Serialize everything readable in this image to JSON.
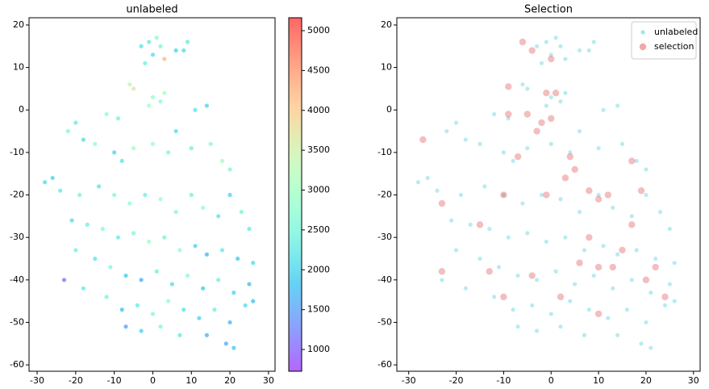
{
  "chart_data": [
    {
      "type": "scatter",
      "title": "unlabeled",
      "colormap": "rainbow",
      "x": [
        -3,
        -1,
        0,
        2,
        3,
        6,
        8,
        9,
        -2,
        1,
        0,
        2,
        -1,
        3,
        -6,
        -5,
        11,
        14,
        -12,
        -9,
        -20,
        -18,
        -22,
        -15,
        -10,
        -8,
        -5,
        0,
        4,
        6,
        10,
        15,
        18,
        20,
        -28,
        -26,
        -24,
        -19,
        -14,
        -10,
        -6,
        -2,
        2,
        6,
        10,
        13,
        17,
        20,
        23,
        25,
        -21,
        -17,
        -13,
        -9,
        -5,
        -1,
        3,
        7,
        11,
        14,
        18,
        22,
        26,
        -20,
        -15,
        -11,
        -7,
        -3,
        1,
        5,
        9,
        13,
        17,
        21,
        25,
        -23,
        -18,
        -12,
        -8,
        -4,
        0,
        4,
        8,
        12,
        16,
        20,
        24,
        -7,
        -3,
        2,
        7,
        14,
        19,
        21,
        26
      ],
      "y": [
        15,
        16,
        13,
        15,
        12,
        14,
        14,
        16,
        11,
        17,
        3,
        2,
        1,
        4,
        6,
        5,
        0,
        1,
        -1,
        -2,
        -3,
        -7,
        -5,
        -8,
        -10,
        -12,
        -9,
        -8,
        -10,
        -5,
        -9,
        -8,
        -12,
        -14,
        -17,
        -16,
        -19,
        -20,
        -18,
        -20,
        -22,
        -20,
        -21,
        -24,
        -20,
        -23,
        -25,
        -20,
        -24,
        -28,
        -26,
        -27,
        -28,
        -30,
        -29,
        -31,
        -30,
        -33,
        -32,
        -34,
        -33,
        -35,
        -36,
        -33,
        -35,
        -37,
        -39,
        -40,
        -38,
        -41,
        -39,
        -42,
        -40,
        -43,
        -41,
        -40,
        -42,
        -44,
        -47,
        -46,
        -48,
        -45,
        -47,
        -49,
        -47,
        -50,
        -46,
        -51,
        -52,
        -51,
        -53,
        -53,
        -55,
        -56,
        -45
      ],
      "c": [
        2200,
        2300,
        2100,
        2600,
        4200,
        2000,
        2100,
        2300,
        2400,
        2700,
        2800,
        2700,
        3000,
        3100,
        3300,
        3600,
        2200,
        2000,
        2800,
        2500,
        2300,
        2100,
        2600,
        2800,
        2000,
        2200,
        3000,
        2900,
        2600,
        2100,
        2400,
        2700,
        3000,
        2600,
        2100,
        2000,
        2300,
        2500,
        2200,
        2600,
        2800,
        2400,
        2900,
        2600,
        2400,
        2800,
        2200,
        2000,
        2500,
        2300,
        2100,
        2400,
        2700,
        2300,
        2600,
        2900,
        2500,
        2800,
        2000,
        1700,
        2300,
        1900,
        2100,
        2400,
        2200,
        2600,
        1900,
        1600,
        2400,
        2100,
        2700,
        1900,
        2400,
        2000,
        1800,
        1200,
        2300,
        2500,
        1800,
        2300,
        2600,
        2800,
        2200,
        2000,
        2400,
        1700,
        2100,
        1500,
        2000,
        2600,
        2300,
        1700,
        1600,
        1900,
        1800
      ],
      "xlim": [
        -32.1,
        31.7
      ],
      "ylim": [
        -61.5,
        21.7
      ],
      "xticks": [
        -30,
        -20,
        -10,
        0,
        10,
        20,
        30
      ],
      "yticks": [
        -60,
        -50,
        -40,
        -30,
        -20,
        -10,
        0,
        10,
        20
      ],
      "clim": [
        727,
        5162
      ],
      "cticks": [
        1000,
        1500,
        2000,
        2500,
        3000,
        3500,
        4000,
        4500,
        5000
      ]
    },
    {
      "type": "scatter",
      "title": "Selection",
      "legend": "upper right",
      "series": [
        {
          "name": "unlabeled",
          "color": "#17becf",
          "x": [
            -3,
            -1,
            0,
            2,
            3,
            6,
            8,
            9,
            -2,
            1,
            0,
            2,
            -1,
            3,
            -6,
            -5,
            11,
            14,
            -12,
            -9,
            -20,
            -18,
            -22,
            -15,
            -10,
            -8,
            -5,
            0,
            4,
            6,
            10,
            15,
            18,
            20,
            -28,
            -26,
            -24,
            -19,
            -14,
            -10,
            -6,
            -2,
            2,
            6,
            10,
            13,
            17,
            20,
            23,
            25,
            -21,
            -17,
            -13,
            -9,
            -5,
            -1,
            3,
            7,
            11,
            14,
            18,
            22,
            26,
            -20,
            -15,
            -11,
            -7,
            -3,
            1,
            5,
            9,
            13,
            17,
            21,
            25,
            -23,
            -18,
            -12,
            -8,
            -4,
            0,
            4,
            8,
            12,
            16,
            20,
            24,
            -7,
            -3,
            2,
            7,
            14,
            19,
            21,
            26
          ],
          "y": [
            15,
            16,
            13,
            15,
            12,
            14,
            14,
            16,
            11,
            17,
            3,
            2,
            1,
            4,
            6,
            5,
            0,
            1,
            -1,
            -2,
            -3,
            -7,
            -5,
            -8,
            -10,
            -12,
            -9,
            -8,
            -10,
            -5,
            -9,
            -8,
            -12,
            -14,
            -17,
            -16,
            -19,
            -20,
            -18,
            -20,
            -22,
            -20,
            -21,
            -24,
            -20,
            -23,
            -25,
            -20,
            -24,
            -28,
            -26,
            -27,
            -28,
            -30,
            -29,
            -31,
            -30,
            -33,
            -32,
            -34,
            -33,
            -35,
            -36,
            -33,
            -35,
            -37,
            -39,
            -40,
            -38,
            -41,
            -39,
            -42,
            -40,
            -43,
            -41,
            -40,
            -42,
            -44,
            -47,
            -46,
            -48,
            -45,
            -47,
            -49,
            -47,
            -50,
            -46,
            -51,
            -52,
            -51,
            -53,
            -53,
            -55,
            -56,
            -45
          ]
        },
        {
          "name": "selection",
          "color": "#d62728",
          "x": [
            -6,
            -4,
            0,
            -5,
            -2,
            -1,
            1,
            -9,
            -9,
            -3,
            4,
            -7,
            -23,
            -23,
            -13,
            -10,
            -4,
            -10,
            -1,
            3,
            5,
            8,
            10,
            12,
            17,
            19,
            10,
            13,
            20,
            24,
            2,
            10,
            8,
            15,
            22,
            -27,
            -15,
            0,
            6,
            17
          ],
          "y": [
            16,
            14,
            12,
            -1,
            -3,
            4,
            4,
            5.5,
            -1,
            -5,
            -11,
            -11,
            -22,
            -38,
            -38,
            -44,
            -39,
            -20,
            -20,
            -16,
            -14,
            -19,
            -21,
            -20,
            -27,
            -19,
            -37,
            -37,
            -40,
            -44,
            -44,
            -48,
            -30,
            -33,
            -37,
            -7,
            -27,
            -2,
            -36,
            -12
          ]
        }
      ],
      "xlim": [
        -32.5,
        31.4
      ],
      "ylim": [
        -61.5,
        21.7
      ],
      "xticks": [
        -30,
        -20,
        -10,
        0,
        10,
        20,
        30
      ],
      "yticks": [
        -60,
        -50,
        -40,
        -30,
        -20,
        -10,
        0,
        10,
        20
      ]
    }
  ]
}
